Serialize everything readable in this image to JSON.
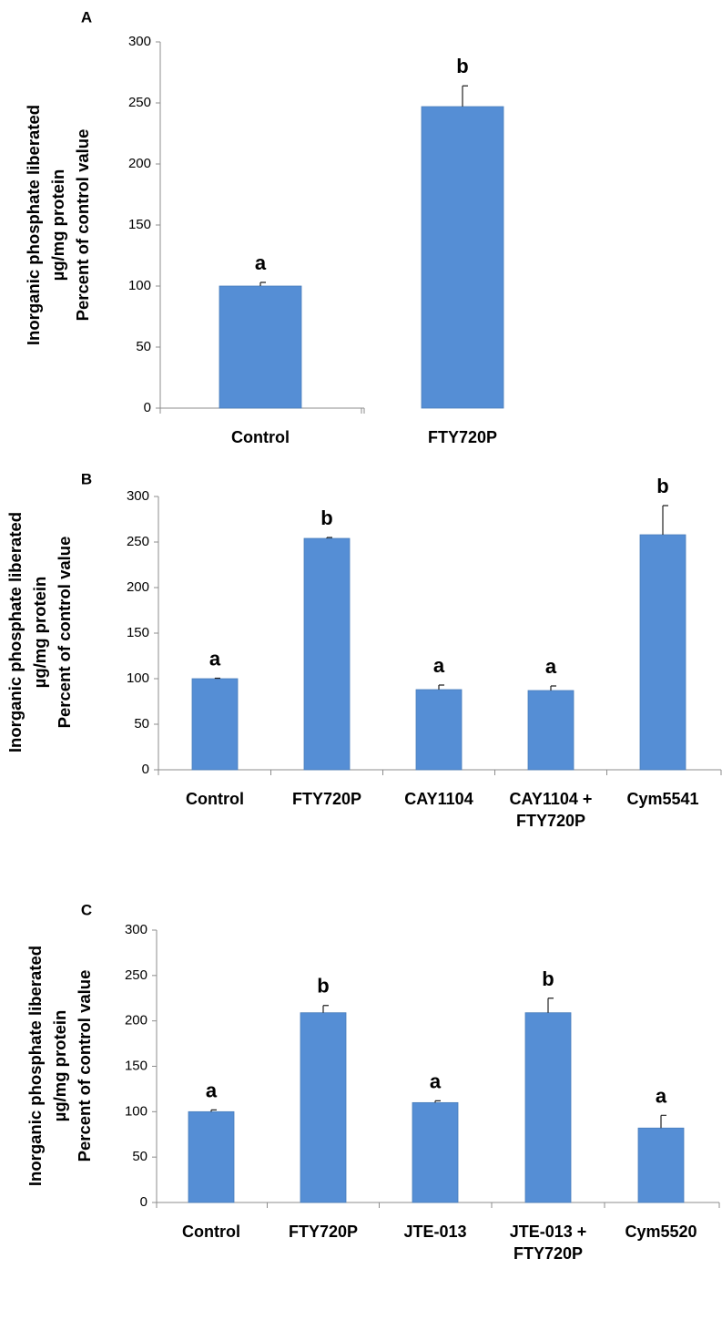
{
  "colors": {
    "bar": "#558ED5",
    "bar_edge": "#4A7EBB",
    "axis": "#8C8C8C"
  },
  "chart_data": [
    {
      "type": "bar",
      "panel_label": "A",
      "ylabel": [
        "Inorganic phosphate liberated",
        "µg/mg protein",
        "Percent of control value"
      ],
      "ylim": [
        0,
        300
      ],
      "yticks": [
        0,
        50,
        100,
        150,
        200,
        250,
        300
      ],
      "categories": [
        [
          "Control"
        ],
        [
          "FTY720P"
        ]
      ],
      "values": [
        100,
        247
      ],
      "errors": [
        3,
        17
      ],
      "significance": [
        "a",
        "b"
      ]
    },
    {
      "type": "bar",
      "panel_label": "B",
      "ylabel": [
        "Inorganic phosphate liberated",
        "µg/mg protein",
        "Percent of control value"
      ],
      "ylim": [
        0,
        300
      ],
      "yticks": [
        0,
        50,
        100,
        150,
        200,
        250,
        300
      ],
      "categories": [
        [
          "Control"
        ],
        [
          "FTY720P"
        ],
        [
          "CAY1104"
        ],
        [
          "CAY1104 +",
          "FTY720P"
        ],
        [
          "Cym5541"
        ]
      ],
      "values": [
        100,
        254,
        88,
        87,
        258
      ],
      "errors": [
        0.5,
        1,
        5,
        5,
        32
      ],
      "significance": [
        "a",
        "b",
        "a",
        "a",
        "b"
      ]
    },
    {
      "type": "bar",
      "panel_label": "C",
      "ylabel": [
        "Inorganic phosphate liberated",
        "µg/mg protein",
        "Percent of control value"
      ],
      "ylim": [
        0,
        300
      ],
      "yticks": [
        0,
        50,
        100,
        150,
        200,
        250,
        300
      ],
      "categories": [
        [
          "Control"
        ],
        [
          "FTY720P"
        ],
        [
          "JTE-013"
        ],
        [
          "JTE-013 +",
          "FTY720P"
        ],
        [
          "Cym5520"
        ]
      ],
      "values": [
        100,
        209,
        110,
        209,
        82
      ],
      "errors": [
        2,
        8,
        2,
        16,
        14
      ],
      "significance": [
        "a",
        "b",
        "a",
        "b",
        "a"
      ]
    }
  ]
}
